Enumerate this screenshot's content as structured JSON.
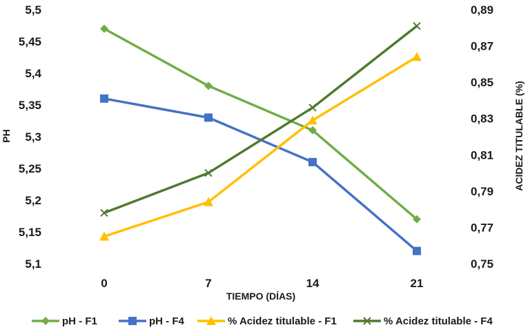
{
  "chart_data": {
    "type": "line",
    "title": "",
    "xlabel": "TIEMPO (DÍAS)",
    "ylabel_left": "PH",
    "ylabel_right": "ACIDEZ TITULABLE (%)",
    "categories": [
      "0",
      "7",
      "14",
      "21"
    ],
    "y_left": {
      "min": 5.1,
      "max": 5.5,
      "step": 0.05,
      "ticks": [
        "5,1",
        "5,15",
        "5,2",
        "5,25",
        "5,3",
        "5,35",
        "5,4",
        "5,45",
        "5,5"
      ]
    },
    "y_right": {
      "min": 0.75,
      "max": 0.89,
      "step": 0.02,
      "ticks": [
        "0,75",
        "0,77",
        "0,79",
        "0,81",
        "0,83",
        "0,85",
        "0,87",
        "0,89"
      ]
    },
    "grid": false,
    "legend_position": "bottom",
    "series": [
      {
        "name": "pH - F1",
        "axis": "left",
        "marker": "diamond",
        "color": "#70ad47",
        "values": [
          5.47,
          5.38,
          5.31,
          5.17
        ]
      },
      {
        "name": "pH - F4",
        "axis": "left",
        "marker": "square",
        "color": "#4472c4",
        "values": [
          5.36,
          5.33,
          5.26,
          5.12
        ]
      },
      {
        "name": "% Acidez titulable - F1",
        "axis": "right",
        "marker": "triangle",
        "color": "#ffc000",
        "values": [
          0.765,
          0.784,
          0.829,
          0.864
        ]
      },
      {
        "name": "% Acidez titulable - F4",
        "axis": "right",
        "marker": "x",
        "color": "#4e7a2f",
        "values": [
          0.778,
          0.8,
          0.836,
          0.881
        ]
      }
    ]
  }
}
